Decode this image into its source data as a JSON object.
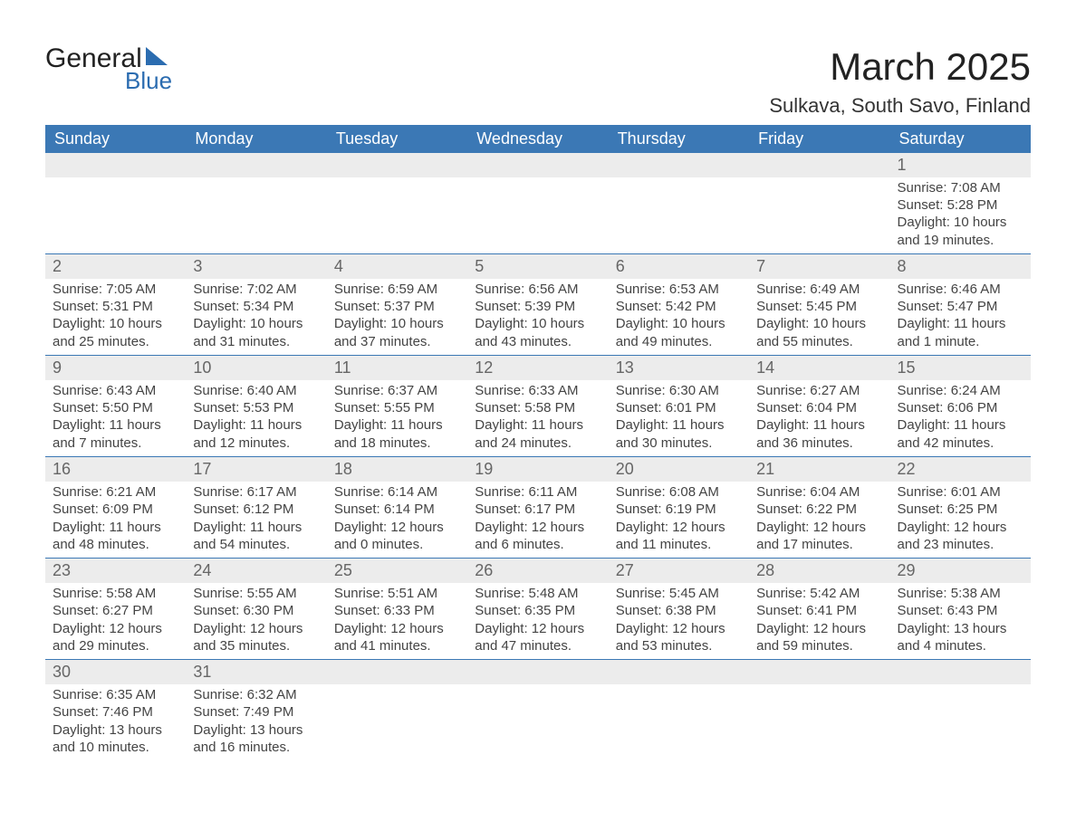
{
  "brand": {
    "general": "General",
    "blue": "Blue"
  },
  "header": {
    "title": "March 2025",
    "location": "Sulkava, South Savo, Finland"
  },
  "style": {
    "header_bg": "#3b78b5",
    "header_fg": "#ffffff",
    "daynum_bg": "#ececec",
    "border_color": "#3b78b5",
    "text_color": "#444444",
    "title_fontsize": 42,
    "loc_fontsize": 22,
    "dow_fontsize": 18,
    "body_fontsize": 15
  },
  "days_of_week": [
    "Sunday",
    "Monday",
    "Tuesday",
    "Wednesday",
    "Thursday",
    "Friday",
    "Saturday"
  ],
  "weeks": [
    [
      null,
      null,
      null,
      null,
      null,
      null,
      {
        "n": "1",
        "sr": "Sunrise: 7:08 AM",
        "ss": "Sunset: 5:28 PM",
        "d1": "Daylight: 10 hours",
        "d2": "and 19 minutes."
      }
    ],
    [
      {
        "n": "2",
        "sr": "Sunrise: 7:05 AM",
        "ss": "Sunset: 5:31 PM",
        "d1": "Daylight: 10 hours",
        "d2": "and 25 minutes."
      },
      {
        "n": "3",
        "sr": "Sunrise: 7:02 AM",
        "ss": "Sunset: 5:34 PM",
        "d1": "Daylight: 10 hours",
        "d2": "and 31 minutes."
      },
      {
        "n": "4",
        "sr": "Sunrise: 6:59 AM",
        "ss": "Sunset: 5:37 PM",
        "d1": "Daylight: 10 hours",
        "d2": "and 37 minutes."
      },
      {
        "n": "5",
        "sr": "Sunrise: 6:56 AM",
        "ss": "Sunset: 5:39 PM",
        "d1": "Daylight: 10 hours",
        "d2": "and 43 minutes."
      },
      {
        "n": "6",
        "sr": "Sunrise: 6:53 AM",
        "ss": "Sunset: 5:42 PM",
        "d1": "Daylight: 10 hours",
        "d2": "and 49 minutes."
      },
      {
        "n": "7",
        "sr": "Sunrise: 6:49 AM",
        "ss": "Sunset: 5:45 PM",
        "d1": "Daylight: 10 hours",
        "d2": "and 55 minutes."
      },
      {
        "n": "8",
        "sr": "Sunrise: 6:46 AM",
        "ss": "Sunset: 5:47 PM",
        "d1": "Daylight: 11 hours",
        "d2": "and 1 minute."
      }
    ],
    [
      {
        "n": "9",
        "sr": "Sunrise: 6:43 AM",
        "ss": "Sunset: 5:50 PM",
        "d1": "Daylight: 11 hours",
        "d2": "and 7 minutes."
      },
      {
        "n": "10",
        "sr": "Sunrise: 6:40 AM",
        "ss": "Sunset: 5:53 PM",
        "d1": "Daylight: 11 hours",
        "d2": "and 12 minutes."
      },
      {
        "n": "11",
        "sr": "Sunrise: 6:37 AM",
        "ss": "Sunset: 5:55 PM",
        "d1": "Daylight: 11 hours",
        "d2": "and 18 minutes."
      },
      {
        "n": "12",
        "sr": "Sunrise: 6:33 AM",
        "ss": "Sunset: 5:58 PM",
        "d1": "Daylight: 11 hours",
        "d2": "and 24 minutes."
      },
      {
        "n": "13",
        "sr": "Sunrise: 6:30 AM",
        "ss": "Sunset: 6:01 PM",
        "d1": "Daylight: 11 hours",
        "d2": "and 30 minutes."
      },
      {
        "n": "14",
        "sr": "Sunrise: 6:27 AM",
        "ss": "Sunset: 6:04 PM",
        "d1": "Daylight: 11 hours",
        "d2": "and 36 minutes."
      },
      {
        "n": "15",
        "sr": "Sunrise: 6:24 AM",
        "ss": "Sunset: 6:06 PM",
        "d1": "Daylight: 11 hours",
        "d2": "and 42 minutes."
      }
    ],
    [
      {
        "n": "16",
        "sr": "Sunrise: 6:21 AM",
        "ss": "Sunset: 6:09 PM",
        "d1": "Daylight: 11 hours",
        "d2": "and 48 minutes."
      },
      {
        "n": "17",
        "sr": "Sunrise: 6:17 AM",
        "ss": "Sunset: 6:12 PM",
        "d1": "Daylight: 11 hours",
        "d2": "and 54 minutes."
      },
      {
        "n": "18",
        "sr": "Sunrise: 6:14 AM",
        "ss": "Sunset: 6:14 PM",
        "d1": "Daylight: 12 hours",
        "d2": "and 0 minutes."
      },
      {
        "n": "19",
        "sr": "Sunrise: 6:11 AM",
        "ss": "Sunset: 6:17 PM",
        "d1": "Daylight: 12 hours",
        "d2": "and 6 minutes."
      },
      {
        "n": "20",
        "sr": "Sunrise: 6:08 AM",
        "ss": "Sunset: 6:19 PM",
        "d1": "Daylight: 12 hours",
        "d2": "and 11 minutes."
      },
      {
        "n": "21",
        "sr": "Sunrise: 6:04 AM",
        "ss": "Sunset: 6:22 PM",
        "d1": "Daylight: 12 hours",
        "d2": "and 17 minutes."
      },
      {
        "n": "22",
        "sr": "Sunrise: 6:01 AM",
        "ss": "Sunset: 6:25 PM",
        "d1": "Daylight: 12 hours",
        "d2": "and 23 minutes."
      }
    ],
    [
      {
        "n": "23",
        "sr": "Sunrise: 5:58 AM",
        "ss": "Sunset: 6:27 PM",
        "d1": "Daylight: 12 hours",
        "d2": "and 29 minutes."
      },
      {
        "n": "24",
        "sr": "Sunrise: 5:55 AM",
        "ss": "Sunset: 6:30 PM",
        "d1": "Daylight: 12 hours",
        "d2": "and 35 minutes."
      },
      {
        "n": "25",
        "sr": "Sunrise: 5:51 AM",
        "ss": "Sunset: 6:33 PM",
        "d1": "Daylight: 12 hours",
        "d2": "and 41 minutes."
      },
      {
        "n": "26",
        "sr": "Sunrise: 5:48 AM",
        "ss": "Sunset: 6:35 PM",
        "d1": "Daylight: 12 hours",
        "d2": "and 47 minutes."
      },
      {
        "n": "27",
        "sr": "Sunrise: 5:45 AM",
        "ss": "Sunset: 6:38 PM",
        "d1": "Daylight: 12 hours",
        "d2": "and 53 minutes."
      },
      {
        "n": "28",
        "sr": "Sunrise: 5:42 AM",
        "ss": "Sunset: 6:41 PM",
        "d1": "Daylight: 12 hours",
        "d2": "and 59 minutes."
      },
      {
        "n": "29",
        "sr": "Sunrise: 5:38 AM",
        "ss": "Sunset: 6:43 PM",
        "d1": "Daylight: 13 hours",
        "d2": "and 4 minutes."
      }
    ],
    [
      {
        "n": "30",
        "sr": "Sunrise: 6:35 AM",
        "ss": "Sunset: 7:46 PM",
        "d1": "Daylight: 13 hours",
        "d2": "and 10 minutes."
      },
      {
        "n": "31",
        "sr": "Sunrise: 6:32 AM",
        "ss": "Sunset: 7:49 PM",
        "d1": "Daylight: 13 hours",
        "d2": "and 16 minutes."
      },
      null,
      null,
      null,
      null,
      null
    ]
  ]
}
